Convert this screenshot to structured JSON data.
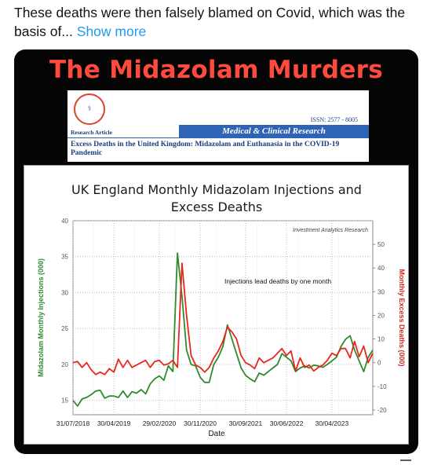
{
  "tweet": {
    "text": "These deaths were then falsely blamed on Covid, which was the basis of...",
    "show_more": "Show more"
  },
  "media": {
    "headline": "The Midazolam Murders",
    "article": {
      "logo_text": "Medical & Clinical Research",
      "issn": "ISSN: 2577 - 8005",
      "type": "Research Article",
      "journal": "Medical & Clinical Research",
      "title": "Excess Deaths in the United Kingdom: Midazolam and Euthanasia in the COVID-19 Pandemic"
    }
  },
  "chart_data": {
    "type": "line",
    "title": "UK England Monthly Midazolam Injections and Excess Deaths",
    "watermark": "Investment Analytics Research",
    "annotation": "Injections lead deaths by one month",
    "xlabel": "Date",
    "ylabel_left": "Midazolam Monthly Injections (000)",
    "ylabel_right": "Monthly Excess Deaths (000)",
    "x_ticks": [
      "31/07/2018",
      "30/04/2019",
      "29/02/2020",
      "30/11/2020",
      "30/09/2021",
      "30/06/2022",
      "30/04/2023"
    ],
    "x_range": [
      "2018-07",
      "2023-07"
    ],
    "y_left": {
      "ticks": [
        15,
        20,
        25,
        30,
        35,
        40
      ],
      "range": [
        13,
        40
      ]
    },
    "y_right": {
      "ticks": [
        -20,
        -10,
        0,
        10,
        20,
        30,
        40,
        50
      ],
      "range": [
        -22,
        60
      ]
    },
    "grid": true,
    "series": [
      {
        "name": "Midazolam Monthly Injections",
        "color": "#2e8b2e",
        "axis": "left",
        "values": [
          15.0,
          14.2,
          15.2,
          15.4,
          15.8,
          16.3,
          16.4,
          15.3,
          15.6,
          15.6,
          15.4,
          16.3,
          15.4,
          16.2,
          16.0,
          16.5,
          15.9,
          17.3,
          18.0,
          18.4,
          17.8,
          19.8,
          19.0,
          35.5,
          29.5,
          22.0,
          20.0,
          19.8,
          18.2,
          17.5,
          17.5,
          20.0,
          21.0,
          22.5,
          25.5,
          23.5,
          21.5,
          19.5,
          18.5,
          18.0,
          17.6,
          18.8,
          18.5,
          19.0,
          19.5,
          20.0,
          21.5,
          21.0,
          20.5,
          19.0,
          19.5,
          19.8,
          19.5,
          19.9,
          19.8,
          19.6,
          20.0,
          20.5,
          21.0,
          22.5,
          23.5,
          24.0,
          22.0,
          20.5,
          19.0,
          21.0,
          22.0
        ]
      },
      {
        "name": "Monthly Excess Deaths",
        "color": "#e8281e",
        "axis": "right",
        "values": [
          0.0,
          0.5,
          -2.0,
          0.0,
          -3.0,
          -5.0,
          -4.0,
          -5.0,
          -2.5,
          -4.0,
          1.5,
          -2.0,
          1.0,
          -2.0,
          -1.0,
          0.0,
          1.0,
          -2.0,
          0.5,
          1.0,
          -1.0,
          -0.5,
          1.0,
          -2.0,
          42.0,
          20.0,
          3.0,
          -1.0,
          -2.0,
          -4.0,
          -2.0,
          2.0,
          5.0,
          9.0,
          15.0,
          13.0,
          10.0,
          3.0,
          0.0,
          -1.0,
          -2.5,
          2.0,
          0.0,
          1.0,
          2.0,
          4.0,
          6.0,
          3.0,
          5.0,
          -3.5,
          2.0,
          -2.0,
          -1.0,
          -3.5,
          -2.0,
          -1.0,
          1.0,
          4.0,
          3.0,
          6.0,
          6.0,
          2.0,
          9.0,
          2.5,
          7.0,
          0.0,
          4.0
        ]
      }
    ]
  }
}
